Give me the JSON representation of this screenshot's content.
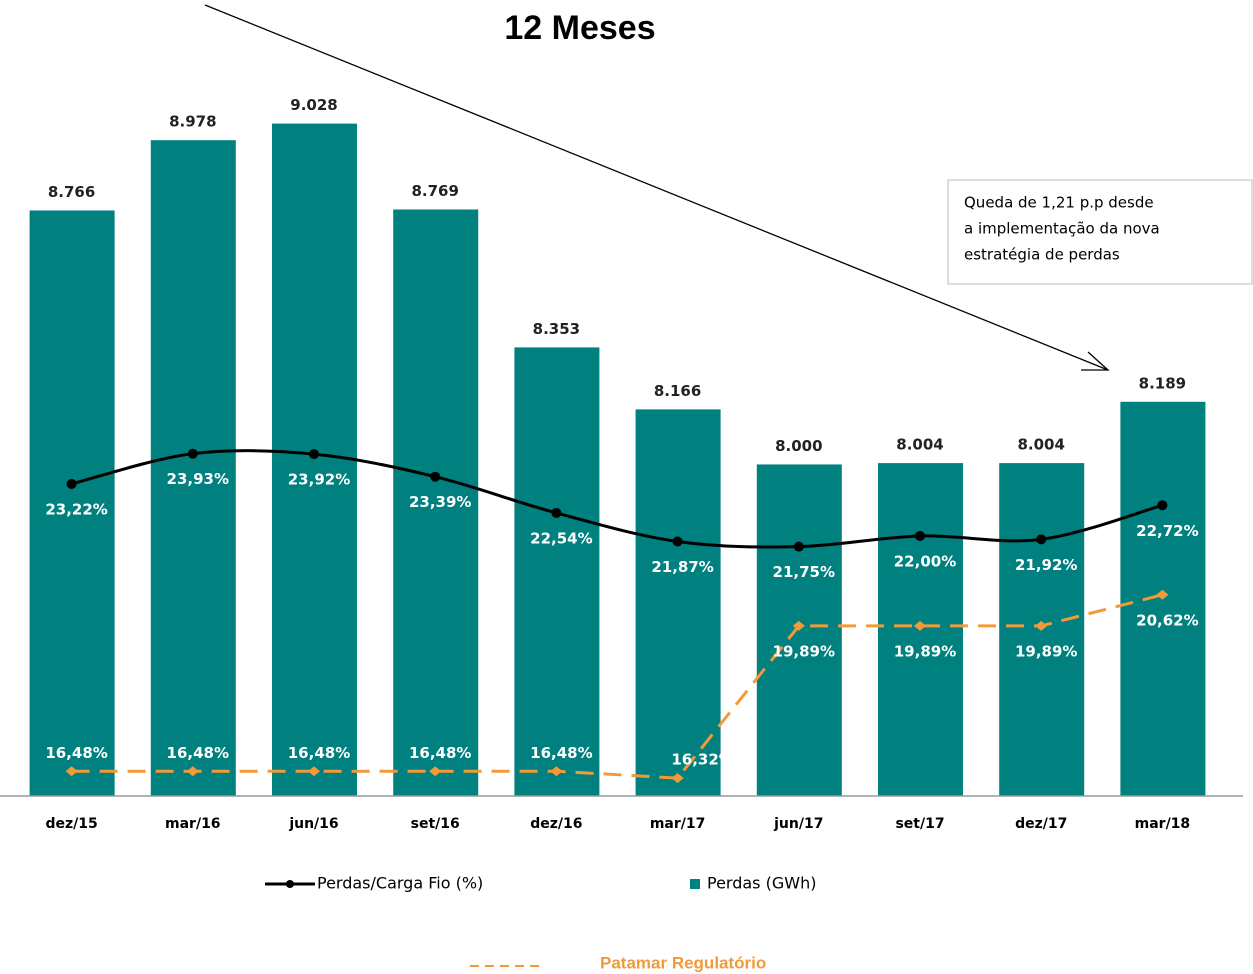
{
  "chart_data": {
    "type": "bar",
    "title": "12 Meses",
    "annotation": [
      "Queda de 1,21 p.p desde",
      "a implementação da  nova",
      "estratégia de perdas"
    ],
    "categories": [
      "dez/15",
      "mar/16",
      "jun/16",
      "set/16",
      "dez/16",
      "mar/17",
      "jun/17",
      "set/17",
      "dez/17",
      "mar/18"
    ],
    "ylim": [
      7000,
      9250
    ],
    "y2lim": [
      15.9,
      33.4
    ],
    "series": [
      {
        "name": "Perdas (GWh)",
        "type": "bar",
        "color": "#00807f",
        "values": [
          8766,
          8978,
          9028,
          8769,
          8353,
          8166,
          8000,
          8004,
          8004,
          8189
        ],
        "value_labels": [
          "8.766",
          "8.978",
          "9.028",
          "8.769",
          "8.353",
          "8.166",
          "8.000",
          "8.004",
          "8.004",
          "8.189"
        ]
      },
      {
        "name": "Perdas/Carga Fio (%)",
        "type": "line",
        "axis": "y2",
        "color": "#000000",
        "smooth": true,
        "values": [
          23.22,
          23.93,
          23.92,
          23.39,
          22.54,
          21.87,
          21.75,
          22.0,
          21.92,
          22.72
        ],
        "value_labels": [
          "23,22%",
          "23,93%",
          "23,92%",
          "23,39%",
          "22,54%",
          "21,87%",
          "21,75%",
          "22,00%",
          "21,92%",
          "22,72%"
        ]
      },
      {
        "name": "Patamar Regulatório",
        "type": "line",
        "axis": "y2",
        "color": "#f39a38",
        "linestyle": "dashed",
        "values": [
          16.48,
          16.48,
          16.48,
          16.48,
          16.48,
          16.32,
          19.89,
          19.89,
          19.89,
          20.62
        ],
        "value_labels": [
          "16,48%",
          "16,48%",
          "16,48%",
          "16,48%",
          "16,48%",
          "16,32%",
          "19,89%",
          "19,89%",
          "19,89%",
          "20,62%"
        ]
      }
    ]
  }
}
